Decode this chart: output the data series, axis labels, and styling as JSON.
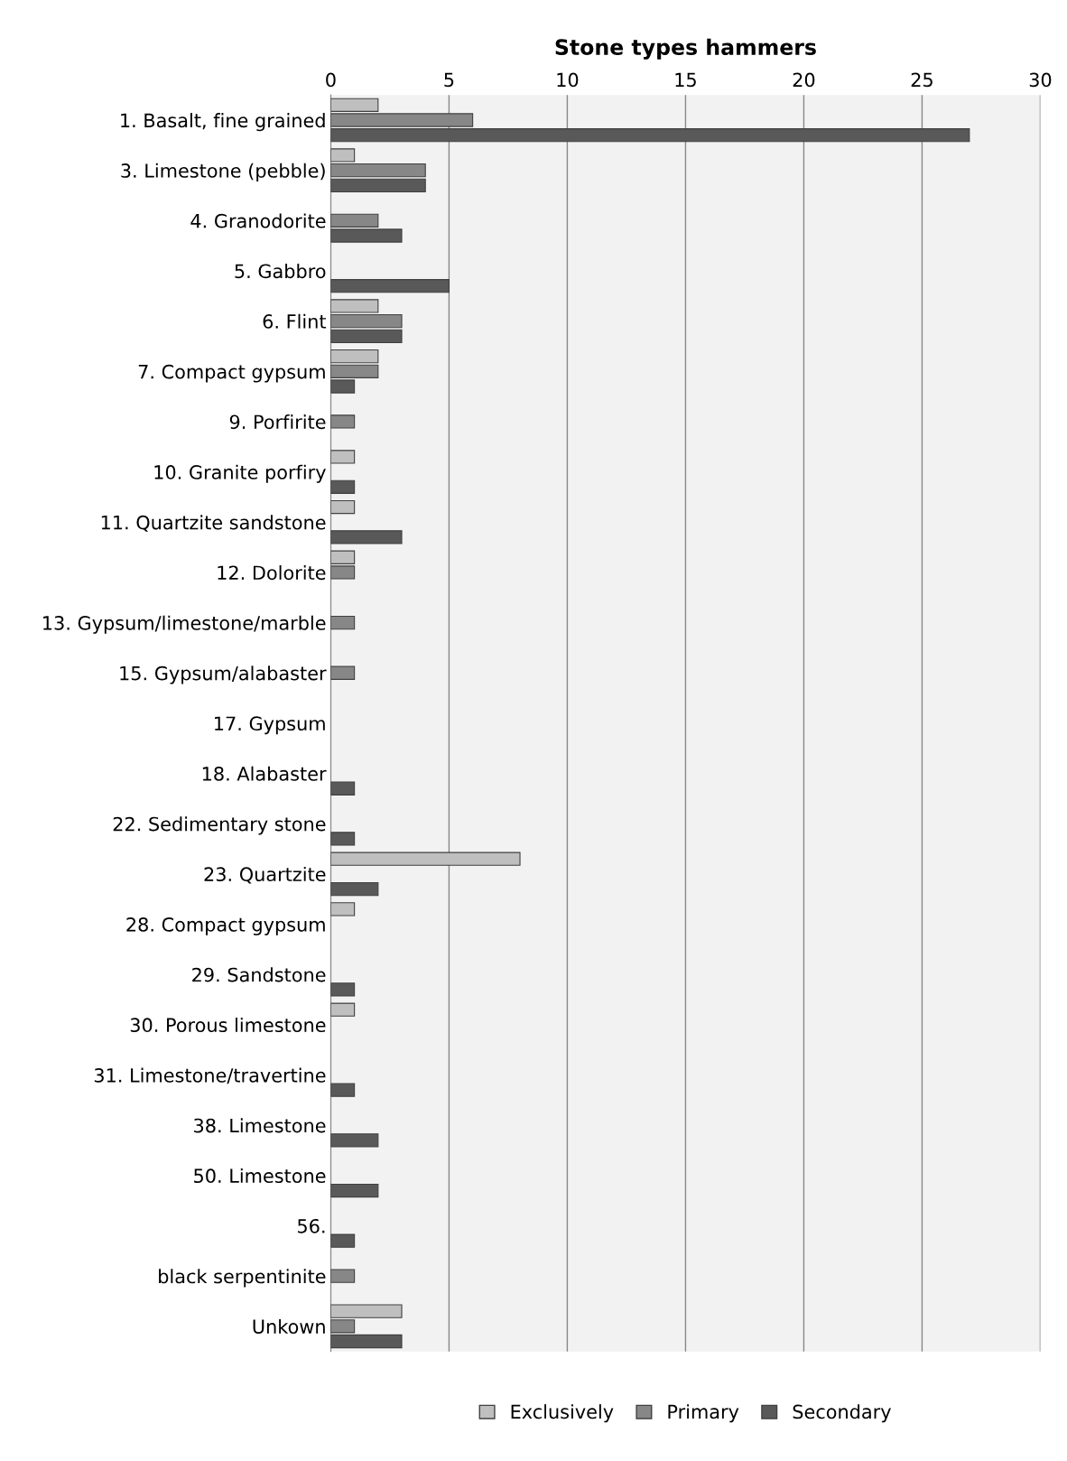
{
  "chart_data": {
    "type": "bar",
    "orientation": "horizontal",
    "title": "Stone types hammers",
    "categories": [
      "1. Basalt, fine grained",
      "3. Limestone (pebble)",
      "4. Granodorite",
      "5. Gabbro",
      "6. Flint",
      "7. Compact gypsum",
      "9. Porfirite",
      "10. Granite porfiry",
      "11. Quartzite sandstone",
      "12. Dolorite",
      "13. Gypsum/limestone/marble",
      "15. Gypsum/alabaster",
      "17. Gypsum",
      "18. Alabaster",
      "22. Sedimentary stone",
      "23. Quartzite",
      "28. Compact gypsum",
      "29. Sandstone",
      "30. Porous limestone",
      "31. Limestone/travertine",
      "38. Limestone",
      "50. Limestone",
      "56.",
      "black serpentinite",
      "Unkown"
    ],
    "series": [
      {
        "name": "Exclusively",
        "color": "#bfbfbf",
        "values": [
          2,
          1,
          null,
          null,
          2,
          2,
          null,
          1,
          1,
          1,
          null,
          null,
          null,
          null,
          null,
          8,
          1,
          null,
          1,
          null,
          null,
          null,
          null,
          null,
          3
        ]
      },
      {
        "name": "Primary",
        "color": "#878787",
        "values": [
          6,
          4,
          2,
          null,
          3,
          2,
          1,
          null,
          null,
          1,
          1,
          1,
          null,
          null,
          null,
          null,
          null,
          null,
          null,
          null,
          null,
          null,
          null,
          1,
          1
        ]
      },
      {
        "name": "Secondary",
        "color": "#595959",
        "values": [
          27,
          4,
          3,
          5,
          3,
          1,
          null,
          1,
          3,
          null,
          null,
          null,
          null,
          1,
          1,
          2,
          null,
          1,
          null,
          1,
          2,
          2,
          1,
          null,
          3
        ]
      }
    ],
    "xlim": [
      0,
      30
    ],
    "xticks": [
      0,
      5,
      10,
      15,
      20,
      25,
      30
    ],
    "grid": "x",
    "legend": "bottom"
  }
}
